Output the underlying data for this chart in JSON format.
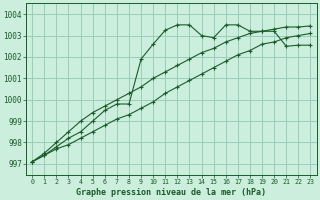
{
  "title": "Graphe pression niveau de la mer (hPa)",
  "bg_color": "#cceedd",
  "grid_color": "#99ccbb",
  "line_color": "#1a5c2a",
  "xlim": [
    -0.5,
    23.5
  ],
  "ylim": [
    996.5,
    1004.5
  ],
  "yticks": [
    997,
    998,
    999,
    1000,
    1001,
    1002,
    1003,
    1004
  ],
  "xticks": [
    0,
    1,
    2,
    3,
    4,
    5,
    6,
    7,
    8,
    9,
    10,
    11,
    12,
    13,
    14,
    15,
    16,
    17,
    18,
    19,
    20,
    21,
    22,
    23
  ],
  "series": [
    [
      997.1,
      997.4,
      997.8,
      998.2,
      998.5,
      999.0,
      999.5,
      999.8,
      999.8,
      1001.9,
      1002.6,
      1003.25,
      1003.5,
      1003.5,
      1003.0,
      1002.9,
      1003.5,
      1003.5,
      1003.2,
      1003.2,
      1003.2,
      1002.5,
      1002.55,
      1002.55
    ],
    [
      997.1,
      997.5,
      998.0,
      998.5,
      999.0,
      999.4,
      999.7,
      1000.0,
      1000.3,
      1000.6,
      1001.0,
      1001.3,
      1001.6,
      1001.9,
      1002.2,
      1002.4,
      1002.7,
      1002.9,
      1003.1,
      1003.2,
      1003.3,
      1003.4,
      1003.4,
      1003.45
    ],
    [
      997.1,
      997.4,
      997.7,
      997.9,
      998.2,
      998.5,
      998.8,
      999.1,
      999.3,
      999.6,
      999.9,
      1000.3,
      1000.6,
      1000.9,
      1001.2,
      1001.5,
      1001.8,
      1002.1,
      1002.3,
      1002.6,
      1002.7,
      1002.9,
      1003.0,
      1003.1
    ]
  ]
}
